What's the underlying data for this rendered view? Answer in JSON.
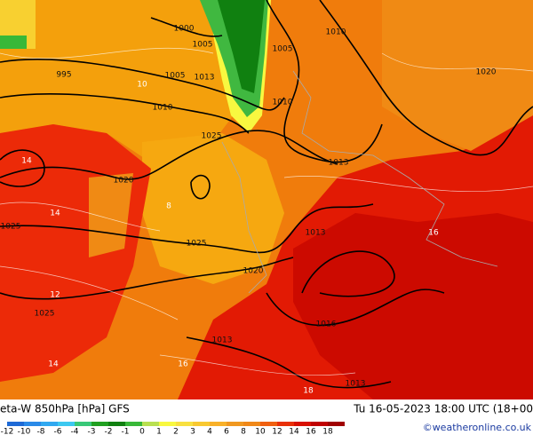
{
  "header": {
    "title": "eta-W 850hPa [hPa] GFS",
    "datetime": "Tu 16-05-2023 18:00 UTC (18+00",
    "credit": "©weatheronline.co.uk"
  },
  "isobar_labels": [
    "1000",
    "1005",
    "1005",
    "1010",
    "995",
    "1005",
    "1013",
    "1010",
    "1010",
    "1020",
    "1025",
    "1013",
    "1020",
    "1025",
    "1013",
    "1025",
    "1020",
    "1025",
    "1016",
    "1013",
    "1013"
  ],
  "theta_labels": [
    "14",
    "14",
    "14",
    "16",
    "18",
    "16",
    "12",
    "10",
    "8"
  ],
  "colorbar": {
    "ticks": [
      -12,
      -10,
      -8,
      -6,
      -4,
      -3,
      -2,
      -1,
      0,
      1,
      2,
      3,
      4,
      6,
      8,
      10,
      12,
      14,
      16,
      18
    ],
    "colors": [
      "#1e6ad6",
      "#2a8ae8",
      "#30a8f0",
      "#3cc8f0",
      "#38c878",
      "#20a020",
      "#108010",
      "#38b838",
      "#b8e050",
      "#f8f840",
      "#f8e040",
      "#f8c830",
      "#f8b028",
      "#f09820",
      "#f08818",
      "#f06010",
      "#e83008",
      "#d81000",
      "#c00000",
      "#a00000"
    ]
  }
}
